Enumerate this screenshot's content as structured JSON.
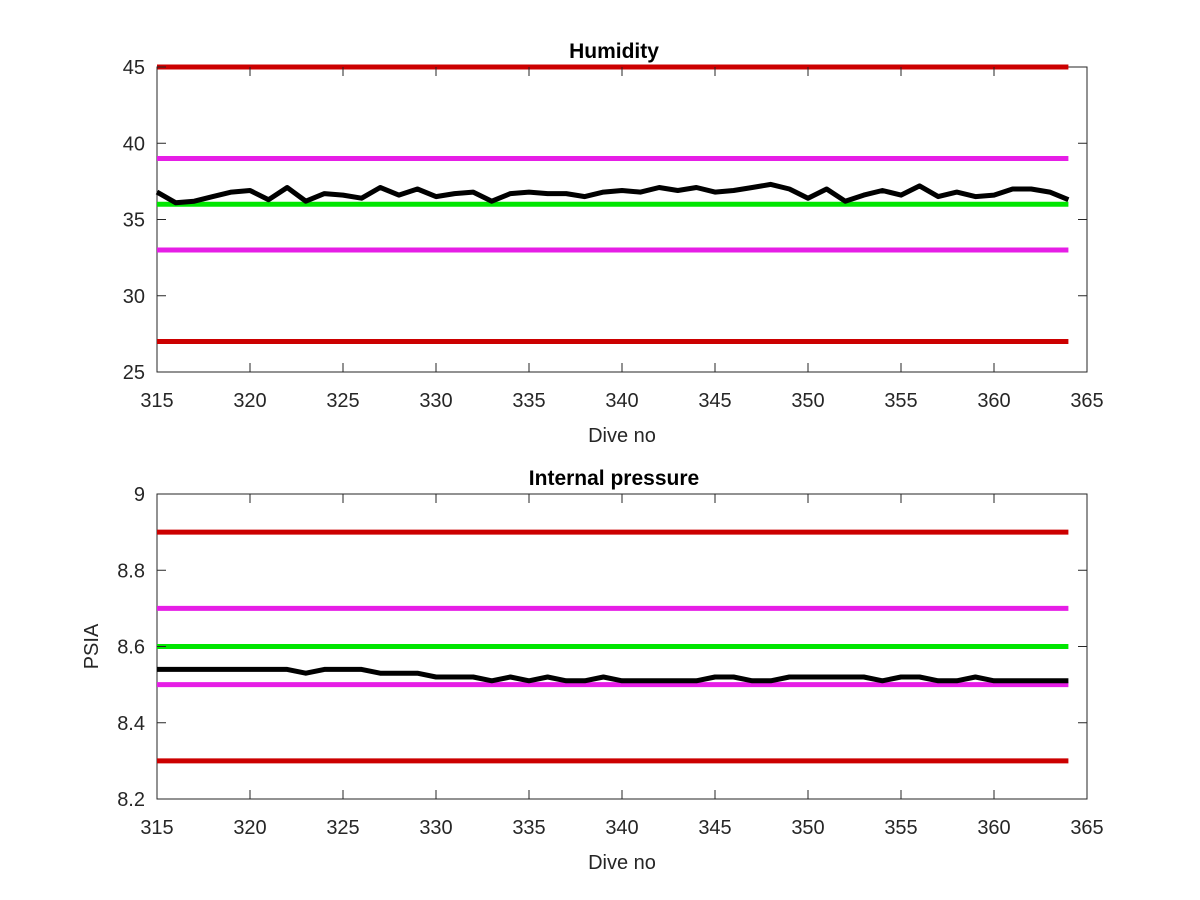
{
  "chart_data": [
    {
      "type": "line",
      "title": "Humidity",
      "xlabel": "Dive no",
      "ylabel": "",
      "xlim": [
        315,
        365
      ],
      "ylim": [
        25,
        45
      ],
      "xticks": [
        315,
        320,
        325,
        330,
        335,
        340,
        345,
        350,
        355,
        360,
        365
      ],
      "yticks": [
        25,
        30,
        35,
        40,
        45
      ],
      "grid": false,
      "limit_lines": [
        {
          "color": "#cc0000",
          "value": 45,
          "x": [
            315,
            364
          ]
        },
        {
          "color": "#e61ee6",
          "value": 39,
          "x": [
            315,
            364
          ]
        },
        {
          "color": "#00e600",
          "value": 36,
          "x": [
            315,
            364
          ]
        },
        {
          "color": "#e61ee6",
          "value": 33,
          "x": [
            315,
            364
          ]
        },
        {
          "color": "#cc0000",
          "value": 27,
          "x": [
            315,
            364
          ]
        }
      ],
      "series": [
        {
          "color": "#000000",
          "x": [
            315,
            316,
            317,
            318,
            319,
            320,
            321,
            322,
            323,
            324,
            325,
            326,
            327,
            328,
            329,
            330,
            331,
            332,
            333,
            334,
            335,
            336,
            337,
            338,
            339,
            340,
            341,
            342,
            343,
            344,
            345,
            346,
            347,
            348,
            349,
            350,
            351,
            352,
            353,
            354,
            355,
            356,
            357,
            358,
            359,
            360,
            361,
            362,
            363,
            364
          ],
          "values": [
            36.8,
            36.1,
            36.2,
            36.5,
            36.8,
            36.9,
            36.3,
            37.1,
            36.2,
            36.7,
            36.6,
            36.4,
            37.1,
            36.6,
            37.0,
            36.5,
            36.7,
            36.8,
            36.2,
            36.7,
            36.8,
            36.7,
            36.7,
            36.5,
            36.8,
            36.9,
            36.8,
            37.1,
            36.9,
            37.1,
            36.8,
            36.9,
            37.1,
            37.3,
            37.0,
            36.4,
            37.0,
            36.2,
            36.6,
            36.9,
            36.6,
            37.2,
            36.5,
            36.8,
            36.5,
            36.6,
            37.0,
            37.0,
            36.8,
            36.3
          ]
        }
      ]
    },
    {
      "type": "line",
      "title": "Internal pressure",
      "xlabel": "Dive no",
      "ylabel": "PSIA",
      "xlim": [
        315,
        365
      ],
      "ylim": [
        8.2,
        9.0
      ],
      "xticks": [
        315,
        320,
        325,
        330,
        335,
        340,
        345,
        350,
        355,
        360,
        365
      ],
      "yticks": [
        8.2,
        8.4,
        8.6,
        8.8,
        9.0
      ],
      "ytick_labels": [
        "8.2",
        "8.4",
        "8.6",
        "8.8",
        "9"
      ],
      "grid": false,
      "limit_lines": [
        {
          "color": "#cc0000",
          "value": 8.9,
          "x": [
            315,
            364
          ]
        },
        {
          "color": "#e61ee6",
          "value": 8.7,
          "x": [
            315,
            364
          ]
        },
        {
          "color": "#00e600",
          "value": 8.6,
          "x": [
            315,
            364
          ]
        },
        {
          "color": "#e61ee6",
          "value": 8.5,
          "x": [
            315,
            364
          ]
        },
        {
          "color": "#cc0000",
          "value": 8.3,
          "x": [
            315,
            364
          ]
        }
      ],
      "series": [
        {
          "color": "#000000",
          "x": [
            315,
            316,
            317,
            318,
            319,
            320,
            321,
            322,
            323,
            324,
            325,
            326,
            327,
            328,
            329,
            330,
            331,
            332,
            333,
            334,
            335,
            336,
            337,
            338,
            339,
            340,
            341,
            342,
            343,
            344,
            345,
            346,
            347,
            348,
            349,
            350,
            351,
            352,
            353,
            354,
            355,
            356,
            357,
            358,
            359,
            360,
            361,
            362,
            363,
            364
          ],
          "values": [
            8.54,
            8.54,
            8.54,
            8.54,
            8.54,
            8.54,
            8.54,
            8.54,
            8.53,
            8.54,
            8.54,
            8.54,
            8.53,
            8.53,
            8.53,
            8.52,
            8.52,
            8.52,
            8.51,
            8.52,
            8.51,
            8.52,
            8.51,
            8.51,
            8.52,
            8.51,
            8.51,
            8.51,
            8.51,
            8.51,
            8.52,
            8.52,
            8.51,
            8.51,
            8.52,
            8.52,
            8.52,
            8.52,
            8.52,
            8.51,
            8.52,
            8.52,
            8.51,
            8.51,
            8.52,
            8.51,
            8.51,
            8.51,
            8.51,
            8.51
          ]
        }
      ]
    }
  ]
}
